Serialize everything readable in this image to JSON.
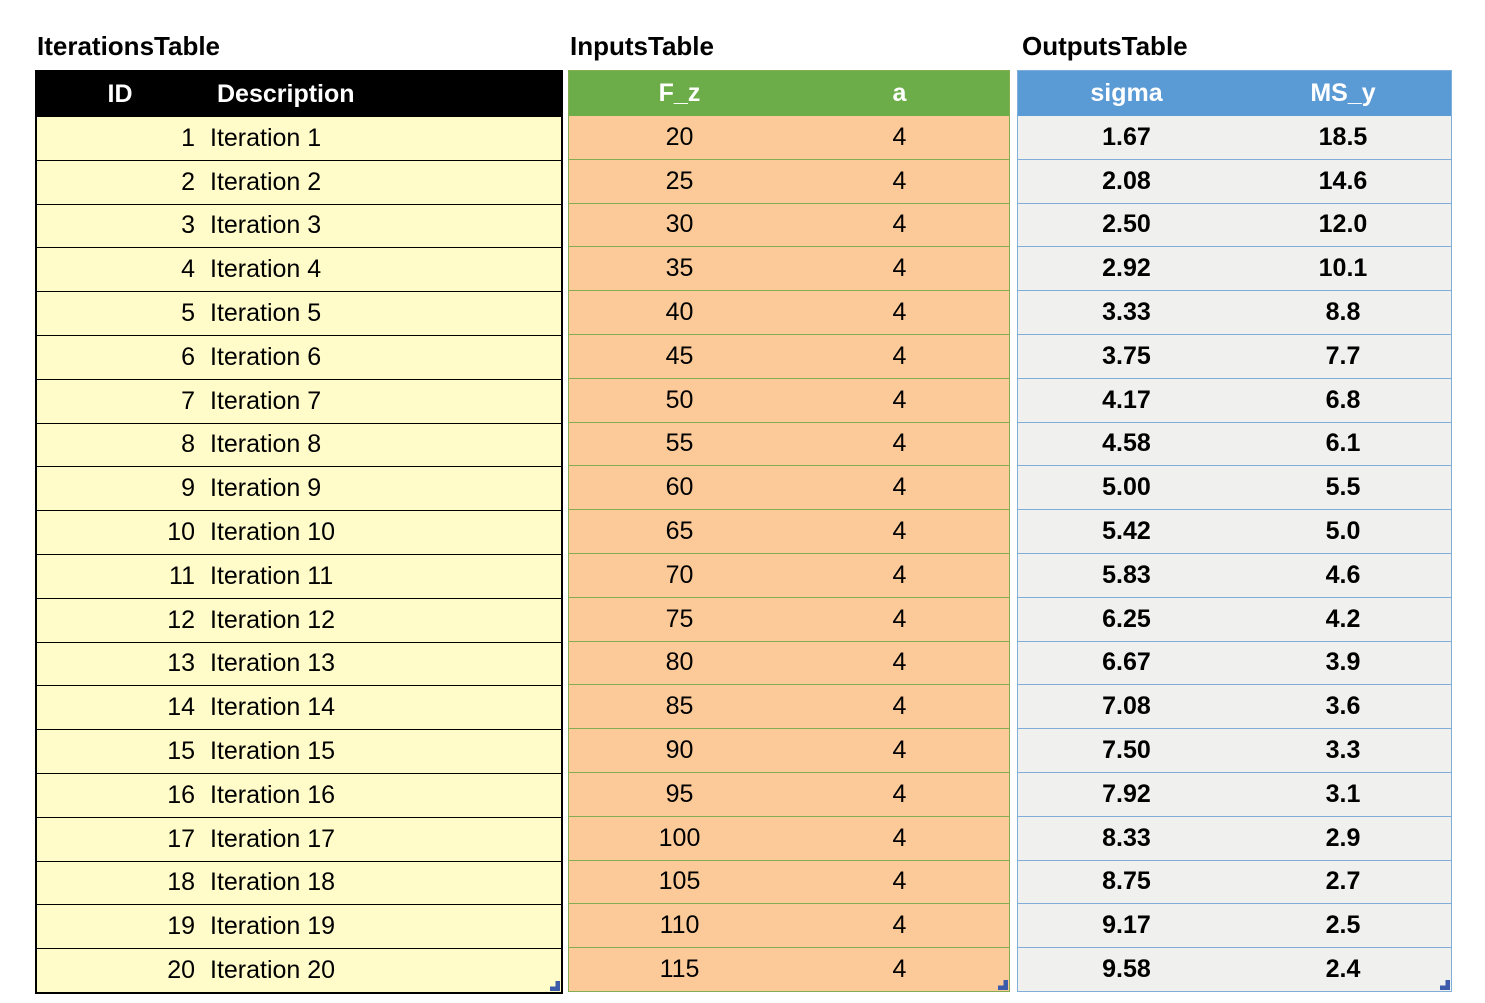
{
  "titles": {
    "iterations": "IterationsTable",
    "inputs": "InputsTable",
    "outputs": "OutputsTable"
  },
  "tables": [
    {
      "key": "iterations",
      "headers": [
        "ID",
        "Description"
      ],
      "rows": [
        [
          "1",
          "Iteration 1"
        ],
        [
          "2",
          "Iteration 2"
        ],
        [
          "3",
          "Iteration 3"
        ],
        [
          "4",
          "Iteration 4"
        ],
        [
          "5",
          "Iteration 5"
        ],
        [
          "6",
          "Iteration 6"
        ],
        [
          "7",
          "Iteration 7"
        ],
        [
          "8",
          "Iteration 8"
        ],
        [
          "9",
          "Iteration 9"
        ],
        [
          "10",
          "Iteration 10"
        ],
        [
          "11",
          "Iteration 11"
        ],
        [
          "12",
          "Iteration 12"
        ],
        [
          "13",
          "Iteration 13"
        ],
        [
          "14",
          "Iteration 14"
        ],
        [
          "15",
          "Iteration 15"
        ],
        [
          "16",
          "Iteration 16"
        ],
        [
          "17",
          "Iteration 17"
        ],
        [
          "18",
          "Iteration 18"
        ],
        [
          "19",
          "Iteration 19"
        ],
        [
          "20",
          "Iteration 20"
        ]
      ]
    },
    {
      "key": "inputs",
      "headers": [
        "F_z",
        "a"
      ],
      "rows": [
        [
          "20",
          "4"
        ],
        [
          "25",
          "4"
        ],
        [
          "30",
          "4"
        ],
        [
          "35",
          "4"
        ],
        [
          "40",
          "4"
        ],
        [
          "45",
          "4"
        ],
        [
          "50",
          "4"
        ],
        [
          "55",
          "4"
        ],
        [
          "60",
          "4"
        ],
        [
          "65",
          "4"
        ],
        [
          "70",
          "4"
        ],
        [
          "75",
          "4"
        ],
        [
          "80",
          "4"
        ],
        [
          "85",
          "4"
        ],
        [
          "90",
          "4"
        ],
        [
          "95",
          "4"
        ],
        [
          "100",
          "4"
        ],
        [
          "105",
          "4"
        ],
        [
          "110",
          "4"
        ],
        [
          "115",
          "4"
        ]
      ]
    },
    {
      "key": "outputs",
      "headers": [
        "sigma",
        "MS_y"
      ],
      "rows": [
        [
          "1.67",
          "18.5"
        ],
        [
          "2.08",
          "14.6"
        ],
        [
          "2.50",
          "12.0"
        ],
        [
          "2.92",
          "10.1"
        ],
        [
          "3.33",
          "8.8"
        ],
        [
          "3.75",
          "7.7"
        ],
        [
          "4.17",
          "6.8"
        ],
        [
          "4.58",
          "6.1"
        ],
        [
          "5.00",
          "5.5"
        ],
        [
          "5.42",
          "5.0"
        ],
        [
          "5.83",
          "4.6"
        ],
        [
          "6.25",
          "4.2"
        ],
        [
          "6.67",
          "3.9"
        ],
        [
          "7.08",
          "3.6"
        ],
        [
          "7.50",
          "3.3"
        ],
        [
          "7.92",
          "3.1"
        ],
        [
          "8.33",
          "2.9"
        ],
        [
          "8.75",
          "2.7"
        ],
        [
          "9.17",
          "2.5"
        ],
        [
          "9.58",
          "2.4"
        ]
      ]
    }
  ],
  "colors": {
    "black-header": "#000000",
    "yellow-fill": "#FFFCC9",
    "green-header": "#6CAC49",
    "green-line": "#84AD52",
    "orange-fill": "#FCCA98",
    "blue-header": "#5B9BD5",
    "blue-line": "#7FAFD9",
    "gray-fill": "#F0F0EE",
    "handle-blue": "#3D5BAB"
  }
}
